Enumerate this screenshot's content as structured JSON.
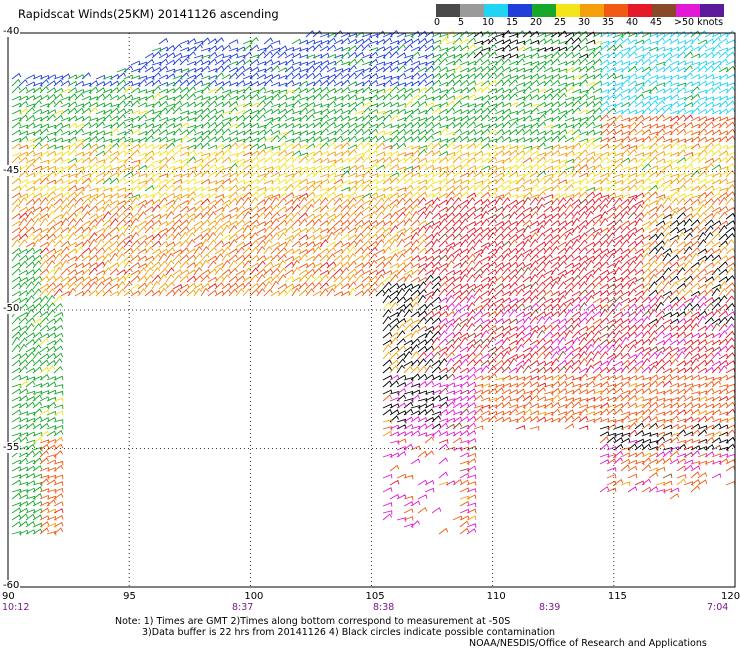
{
  "title": "Rapidscat Winds(25KM) 20141126 ascending",
  "legend": {
    "units": "knots",
    "labels": [
      "0",
      "5",
      "10",
      "15",
      "20",
      "25",
      "30",
      "35",
      "40",
      "45",
      ">50 knots"
    ],
    "colors": [
      "#4a4a4a",
      "#9a9a9a",
      "#22d4f4",
      "#1f3fd8",
      "#17a82a",
      "#f4e41a",
      "#f4a00c",
      "#f05a14",
      "#e41a2a",
      "#8a4a2a",
      "#e21ad6",
      "#5a1a9a"
    ]
  },
  "map": {
    "lat_labels": [
      "-40",
      "-45",
      "-50",
      "-55",
      "-60"
    ],
    "lon_labels": [
      "90",
      "95",
      "100",
      "105",
      "110",
      "115",
      "120"
    ],
    "time_labels": [
      "10:12",
      "8:37",
      "8:38",
      "8:39",
      "7:04"
    ]
  },
  "note": {
    "line1": "Note: 1) Times are GMT 2)Times along bottom correspond to measurement at -50S",
    "line2": "3)Data buffer is 22 hrs from 20141126 4) Black circles indicate possible contamination",
    "credit": "NOAA/NESDIS/Office of Research and Applications"
  }
}
